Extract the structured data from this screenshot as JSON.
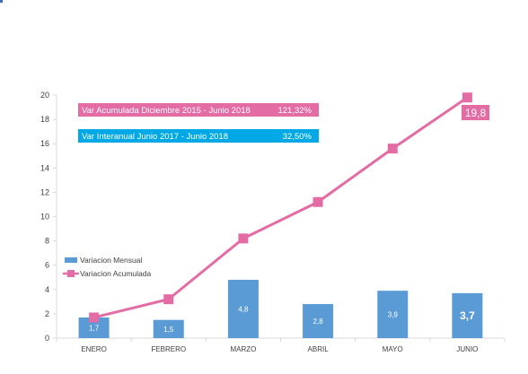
{
  "chart_data": {
    "type": "bar",
    "categories": [
      "ENERO",
      "FEBRERO",
      "MARZO",
      "ABRIL",
      "MAYO",
      "JUNIO"
    ],
    "series": [
      {
        "name": "Variacion Mensual",
        "type": "bar",
        "values": [
          1.7,
          1.5,
          4.8,
          2.8,
          3.9,
          3.7
        ],
        "labels": [
          "1,7",
          "1,5",
          "4,8",
          "2,8",
          "3,9",
          "3,7"
        ],
        "color": "#5b9bd5"
      },
      {
        "name": "Variacion Acumulada",
        "type": "line",
        "values": [
          1.7,
          3.2,
          8.2,
          11.2,
          15.6,
          19.8
        ],
        "color": "#e46ca4"
      }
    ],
    "yticks": [
      "0",
      "2",
      "4",
      "6",
      "8",
      "10",
      "12",
      "14",
      "16",
      "18",
      "20"
    ],
    "ylim": [
      0,
      20
    ],
    "grid": false,
    "legend": "left",
    "end_label": "19,8",
    "info_boxes": [
      {
        "text": "Var Acumulada Diciembre 2015 - Junio 2018",
        "value": "121,32%",
        "color": "#e46ca4"
      },
      {
        "text": "Var  Interanual Junio 2017 - Junio 2018",
        "value": "32,50%",
        "color": "#00a9e6"
      }
    ]
  }
}
